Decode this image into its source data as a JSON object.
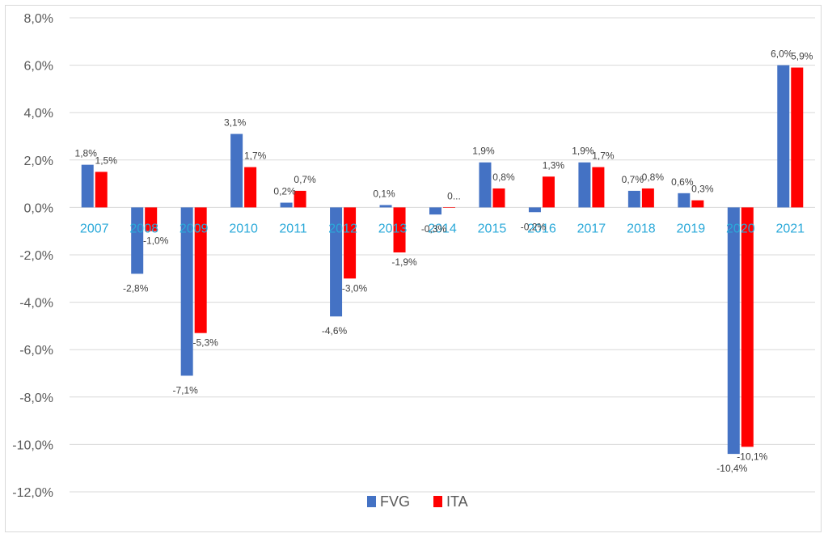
{
  "chart_data": {
    "type": "bar",
    "categories": [
      "2007",
      "2008",
      "2009",
      "2010",
      "2011",
      "2012",
      "2013",
      "2014",
      "2015",
      "2016",
      "2017",
      "2018",
      "2019",
      "2020",
      "2021"
    ],
    "series": [
      {
        "name": "FVG",
        "color": "#4472c4",
        "values": [
          1.8,
          -2.8,
          -7.1,
          3.1,
          0.2,
          -4.6,
          0.1,
          -0.3,
          1.9,
          -0.2,
          1.9,
          0.7,
          0.6,
          -10.4,
          6.0
        ],
        "labels": [
          "1,8%",
          "-2,8%",
          "-7,1%",
          "3,1%",
          "0,2%",
          "-4,6%",
          "0,1%",
          "-0,3%",
          "1,9%",
          "-0,2%",
          "1,9%",
          "0,7%",
          "0,6%",
          "-10,4%",
          "6,0%"
        ]
      },
      {
        "name": "ITA",
        "color": "#ff0000",
        "values": [
          1.5,
          -1.0,
          -5.3,
          1.7,
          0.7,
          -3.0,
          -1.9,
          0.0,
          0.8,
          1.3,
          1.7,
          0.8,
          0.3,
          -10.1,
          5.9
        ],
        "labels": [
          "1,5%",
          "-1,0%",
          "-5,3%",
          "1,7%",
          "0,7%",
          "-3,0%",
          "-1,9%",
          "0...",
          "0,8%",
          "1,3%",
          "1,7%",
          "0,8%",
          "0,3%",
          "-10,1%",
          "5,9%"
        ]
      }
    ],
    "yticks": [
      "8,0%",
      "6,0%",
      "4,0%",
      "2,0%",
      "0,0%",
      "-2,0%",
      "-4,0%",
      "-6,0%",
      "-8,0%",
      "-10,0%",
      "-12,0%"
    ],
    "ylim": [
      -12,
      8
    ],
    "grid": true,
    "legend": "bottom",
    "title": "",
    "xlabel": "",
    "ylabel": ""
  }
}
